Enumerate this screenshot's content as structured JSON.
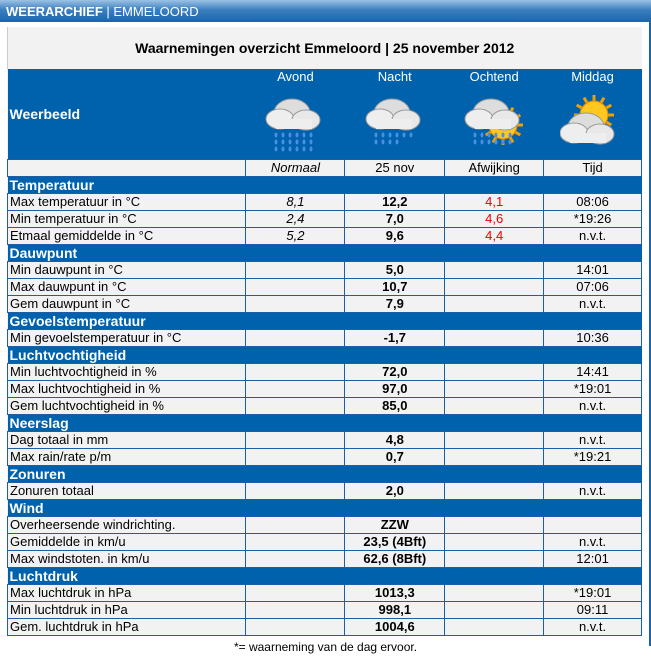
{
  "header": {
    "brand": "WEERARCHIEF",
    "location": "EMMELOORD"
  },
  "title": "Waarnemingen overzicht Emmeloord | 25 november 2012",
  "weather": {
    "label": "Weerbeeld",
    "periods": [
      {
        "name": "Avond",
        "icon": "heavy-rain-icon"
      },
      {
        "name": "Nacht",
        "icon": "rain-icon"
      },
      {
        "name": "Ochtend",
        "icon": "sun-rain-icon"
      },
      {
        "name": "Middag",
        "icon": "partly-cloudy-icon"
      }
    ]
  },
  "columns": [
    "Normaal",
    "25 nov",
    "Afwijking",
    "Tijd"
  ],
  "sections": [
    {
      "title": "Temperatuur",
      "rows": [
        [
          "Max temperatuur in °C",
          "8,1",
          "12,2",
          "4,1",
          "08:06"
        ],
        [
          "Min temperatuur in °C",
          "2,4",
          "7,0",
          "4,6",
          "*19:26"
        ],
        [
          "Etmaal gemiddelde in °C",
          "5,2",
          "9,6",
          "4,4",
          "n.v.t."
        ]
      ]
    },
    {
      "title": "Dauwpunt",
      "rows": [
        [
          "Min dauwpunt in °C",
          "",
          "5,0",
          "",
          "14:01"
        ],
        [
          "Max dauwpunt in °C",
          "",
          "10,7",
          "",
          "07:06"
        ],
        [
          "Gem dauwpunt in °C",
          "",
          "7,9",
          "",
          "n.v.t."
        ]
      ]
    },
    {
      "title": "Gevoelstemperatuur",
      "rows": [
        [
          "Min gevoelstemperatuur in °C",
          "",
          "-1,7",
          "",
          "10:36"
        ]
      ]
    },
    {
      "title": "Luchtvochtigheid",
      "rows": [
        [
          "Min luchtvochtigheid in %",
          "",
          "72,0",
          "",
          "14:41"
        ],
        [
          "Max luchtvochtigheid in %",
          "",
          "97,0",
          "",
          "*19:01"
        ],
        [
          "Gem luchtvochtigheid in %",
          "",
          "85,0",
          "",
          "n.v.t."
        ]
      ]
    },
    {
      "title": "Neerslag",
      "rows": [
        [
          "Dag totaal in mm",
          "",
          "4,8",
          "",
          "n.v.t."
        ],
        [
          "Max rain/rate p/m",
          "",
          "0,7",
          "",
          "*19:21"
        ]
      ]
    },
    {
      "title": "Zonuren",
      "rows": [
        [
          "Zonuren totaal",
          "",
          "2,0",
          "",
          "n.v.t."
        ]
      ]
    },
    {
      "title": "Wind",
      "rows": [
        [
          "Overheersende windrichting.",
          "",
          "ZZW",
          "",
          ""
        ],
        [
          "Gemiddelde in km/u",
          "",
          "23,5 (4Bft)",
          "",
          "n.v.t."
        ],
        [
          "Max windstoten. in km/u",
          "",
          "62,6 (8Bft)",
          "",
          "12:01"
        ]
      ]
    },
    {
      "title": "Luchtdruk",
      "rows": [
        [
          "Max luchtdruk in hPa",
          "",
          "1013,3",
          "",
          "*19:01"
        ],
        [
          "Min luchtdruk in hPa",
          "",
          "998,1",
          "",
          "09:11"
        ],
        [
          "Gem. luchtdruk in hPa",
          "",
          "1004,6",
          "",
          "n.v.t."
        ]
      ]
    }
  ],
  "footnote": "*= waarneming van de dag ervoor."
}
